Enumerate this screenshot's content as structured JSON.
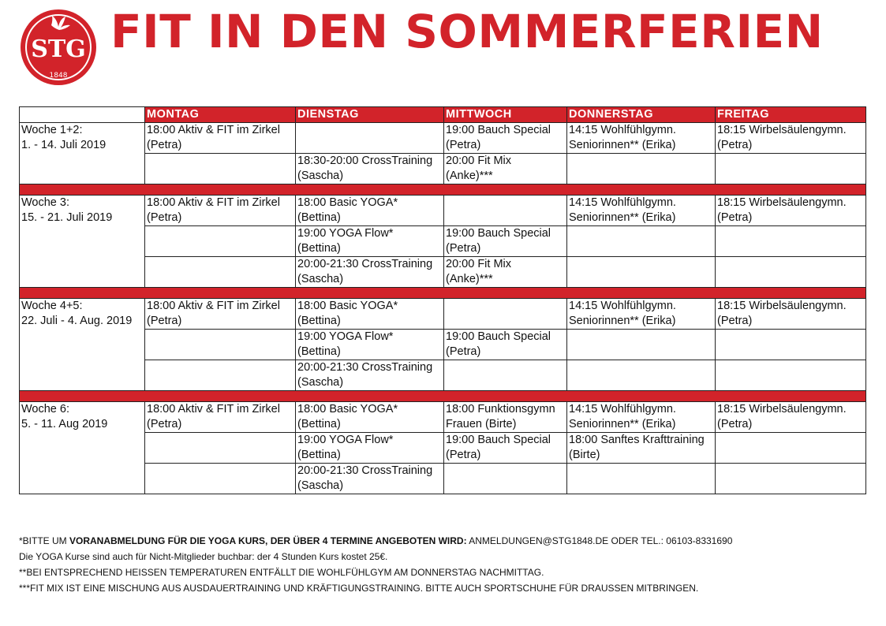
{
  "logo": {
    "text": "STG",
    "year": "1848",
    "color": "#d2232a"
  },
  "title": "FIT IN DEN SOMMERFERIEN",
  "days": [
    "MONTAG",
    "DIENSTAG",
    "MITTWOCH",
    "DONNERSTAG",
    "FREITAG"
  ],
  "weeks": [
    {
      "line1": "Woche 1+2:",
      "line2": "1. - 14. Juli 2019",
      "rows": [
        [
          "18:00 Aktiv & FIT im Zirkel|(Petra)",
          "",
          "19:00 Bauch Special|(Petra)",
          "14:15 Wohlfühlgymn.|Seniorinnen** (Erika)",
          "18:15 Wirbelsäulengymn.|(Petra)"
        ],
        [
          "",
          "18:30-20:00 CrossTraining|(Sascha)",
          "20:00 Fit Mix|(Anke)***",
          "",
          ""
        ]
      ]
    },
    {
      "line1": "Woche 3:",
      "line2": "15. - 21. Juli 2019",
      "rows": [
        [
          "18:00 Aktiv & FIT im Zirkel|(Petra)",
          "18:00 Basic YOGA*|(Bettina)",
          "",
          "14:15 Wohlfühlgymn.|Seniorinnen** (Erika)",
          "18:15 Wirbelsäulengymn.|(Petra)"
        ],
        [
          "",
          "19:00 YOGA Flow*|(Bettina)",
          "19:00 Bauch Special|(Petra)",
          "",
          ""
        ],
        [
          "",
          "20:00-21:30 CrossTraining|(Sascha)",
          "20:00 Fit Mix|(Anke)***",
          "",
          ""
        ]
      ]
    },
    {
      "line1": "Woche 4+5:",
      "line2": "22. Juli - 4. Aug. 2019",
      "rows": [
        [
          "18:00 Aktiv & FIT im Zirkel|(Petra)",
          "18:00 Basic YOGA*|(Bettina)",
          "",
          "14:15 Wohlfühlgymn.|Seniorinnen** (Erika)",
          "18:15 Wirbelsäulengymn.|(Petra)"
        ],
        [
          "",
          "19:00 YOGA Flow*|(Bettina)",
          "19:00 Bauch Special|(Petra)",
          "",
          ""
        ],
        [
          "",
          "20:00-21:30 CrossTraining|(Sascha)",
          "",
          "",
          ""
        ]
      ]
    },
    {
      "line1": "Woche 6:",
      "line2": "5. - 11. Aug 2019",
      "rows": [
        [
          "18:00 Aktiv & FIT im Zirkel|(Petra)",
          "18:00 Basic YOGA*|(Bettina)",
          "18:00 Funktionsgymn|Frauen (Birte)",
          "14:15 Wohlfühlgymn.|Seniorinnen** (Erika)",
          "18:15 Wirbelsäulengymn.|(Petra)"
        ],
        [
          "",
          "19:00 YOGA Flow*|(Bettina)",
          "19:00 Bauch Special|(Petra)",
          "18:00 Sanftes Krafttraining|(Birte)",
          ""
        ],
        [
          "",
          "20:00-21:30 CrossTraining|(Sascha)",
          "",
          "",
          ""
        ]
      ]
    }
  ],
  "notes": {
    "n1_a": "*Bitte um ",
    "n1_b": "Voranabmeldung für die YOGA Kurs, der über 4 Termine angeboten wird:",
    "n1_c": " Anmeldungen@stg1848.de oder Tel.: 06103-8331690",
    "n2": "Die YOGA Kurse sind auch für Nicht-Mitglieder buchbar: der 4 Stunden Kurs kostet 25€.",
    "n3": "**Bei entsprechend heissen Temperaturen entfällt die Wohlfühlgym am Donnerstag Nachmittag.",
    "n4": "***Fit Mix ist eine Mischung aus Ausdauertraining und Kräftigungstraining. Bitte auch Sportschuhe für draussen mitbringen."
  }
}
